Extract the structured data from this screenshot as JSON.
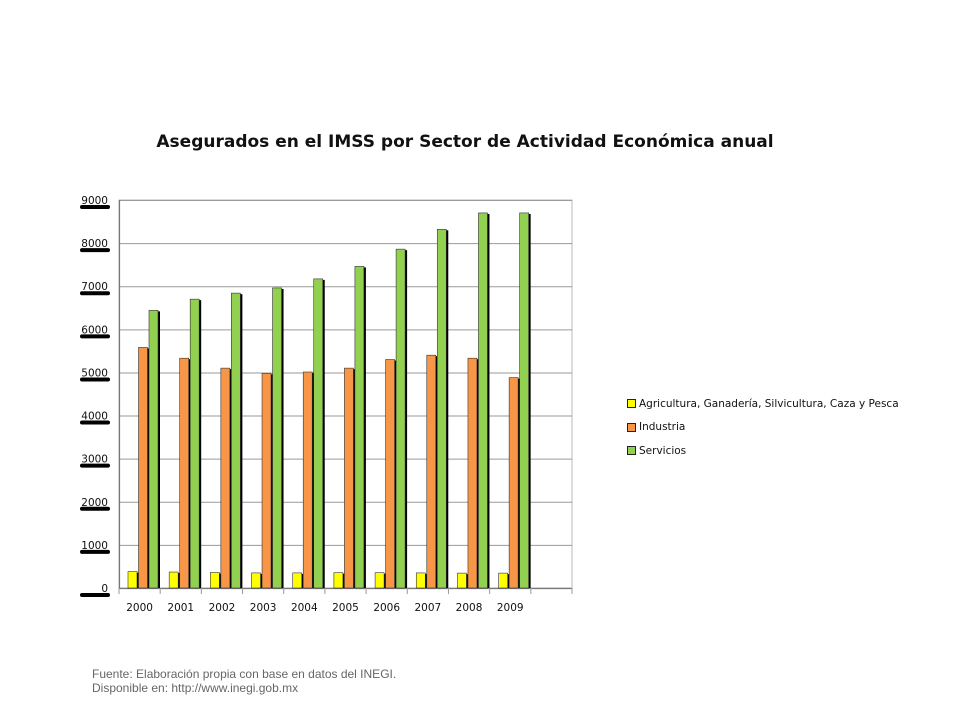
{
  "chart_data": {
    "type": "bar",
    "title": "Asegurados en el IMSS por Sector de Actividad Económica anual",
    "categories": [
      "2000",
      "2001",
      "2002",
      "2003",
      "2004",
      "2005",
      "2006",
      "2007",
      "2008",
      "2009"
    ],
    "series": [
      {
        "name": "Agricultura, Ganadería, Silvicultura, Caza y Pesca",
        "color": "#ffff00",
        "values": [
          380,
          370,
          360,
          350,
          350,
          355,
          355,
          350,
          345,
          345
        ]
      },
      {
        "name": "Industria",
        "color": "#f79646",
        "values": [
          5580,
          5330,
          5100,
          4980,
          5010,
          5100,
          5300,
          5400,
          5330,
          4880
        ]
      },
      {
        "name": "Servicios",
        "color": "#92d050",
        "values": [
          6440,
          6700,
          6840,
          6960,
          7170,
          7460,
          7860,
          8320,
          8700,
          8700
        ]
      }
    ],
    "ylim": [
      0,
      9000
    ],
    "yticks": [
      "0",
      "1000",
      "2000",
      "3000",
      "4000",
      "5000",
      "6000",
      "7000",
      "8000",
      "9000"
    ],
    "grid": true,
    "legend_position": "right",
    "xlabel": "",
    "ylabel": ""
  },
  "footer": {
    "source_line1": "Fuente: Elaboración propia con base en datos del INEGI.",
    "source_line2": "Disponible en: http://www.inegi.gob.mx"
  }
}
